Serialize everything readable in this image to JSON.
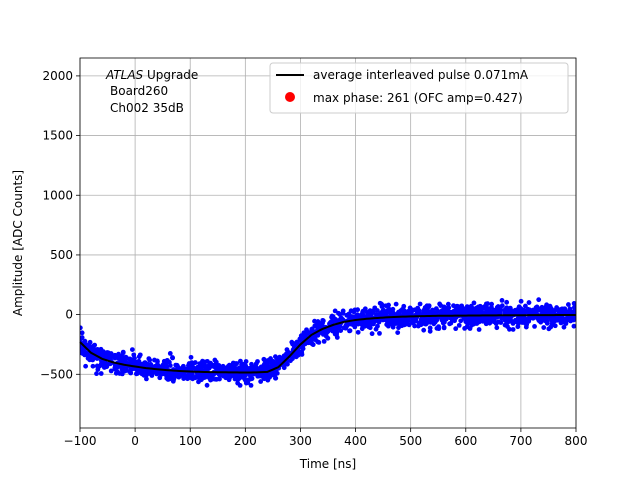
{
  "chart_data": {
    "type": "scatter",
    "title": "",
    "xlabel": "Time [ns]",
    "ylabel": "Amplitude [ADC Counts]",
    "xlim": [
      -100,
      800
    ],
    "ylim": [
      -950,
      2150
    ],
    "xticks": [
      -100,
      0,
      100,
      200,
      300,
      400,
      500,
      600,
      700,
      800
    ],
    "xtick_labels": [
      "−100",
      "0",
      "100",
      "200",
      "300",
      "400",
      "500",
      "600",
      "700",
      "800"
    ],
    "yticks": [
      -500,
      0,
      500,
      1000,
      1500,
      2000
    ],
    "ytick_labels": [
      "−500",
      "0",
      "500",
      "1000",
      "1500",
      "2000"
    ],
    "grid": true,
    "legend_position": "top-right",
    "annotation": {
      "italic": "ATLAS",
      "line1_rest": " Upgrade",
      "line2": "Board260",
      "line3": "Ch002 35dB"
    },
    "series": [
      {
        "name": "average interleaved pulse 0.071mA",
        "kind": "line",
        "color": "#000000",
        "x": [
          -100,
          -80,
          -60,
          -40,
          -20,
          0,
          20,
          40,
          60,
          80,
          100,
          120,
          140,
          160,
          180,
          200,
          220,
          240,
          260,
          280,
          300,
          320,
          340,
          360,
          380,
          400,
          420,
          440,
          460,
          480,
          500,
          550,
          600,
          650,
          700,
          750,
          800
        ],
        "y": [
          -230,
          -320,
          -370,
          -400,
          -420,
          -435,
          -448,
          -458,
          -466,
          -472,
          -477,
          -480,
          -482,
          -483,
          -484,
          -485,
          -484,
          -480,
          -440,
          -350,
          -250,
          -170,
          -120,
          -85,
          -60,
          -45,
          -35,
          -28,
          -22,
          -18,
          -15,
          -10,
          -8,
          -6,
          -5,
          -4,
          -3
        ]
      },
      {
        "name": "",
        "kind": "scatter",
        "color": "#0000ff",
        "noise_sigma": 45,
        "point_count": 1800,
        "x_range": [
          -100,
          800
        ]
      },
      {
        "name": "max phase: 261 (OFC amp=0.427)",
        "kind": "marker",
        "color": "#ff0000"
      }
    ]
  }
}
